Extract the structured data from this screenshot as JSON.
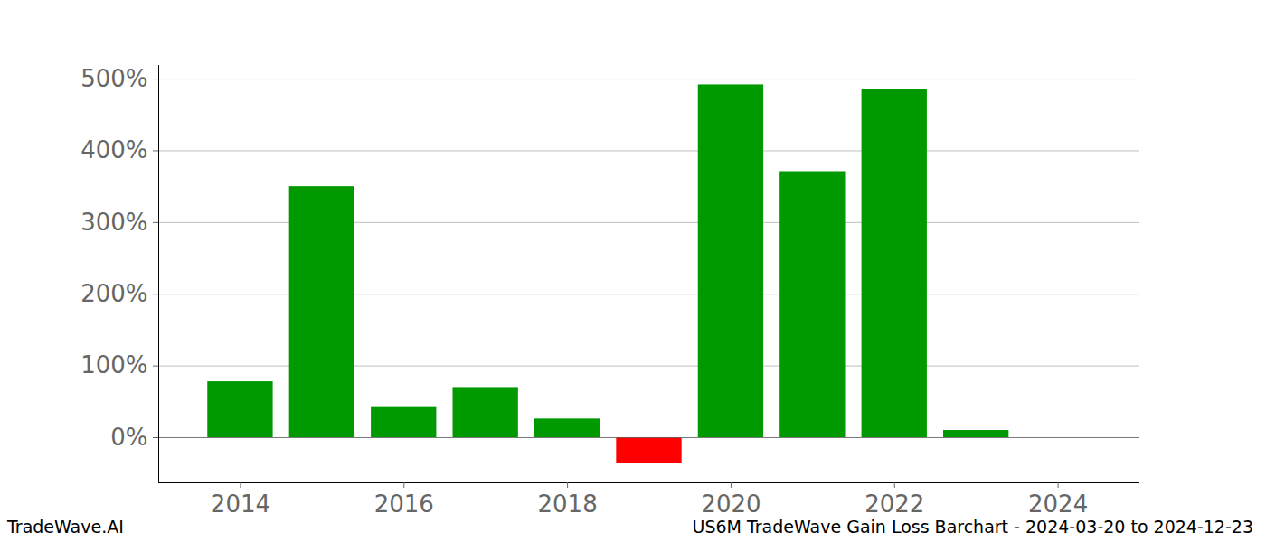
{
  "chart_data": {
    "type": "bar",
    "title": "US6M TradeWave Gain Loss Barchart - 2024-03-20 to 2024-12-23",
    "caption": "TradeWave.AI",
    "x": [
      2014,
      2015,
      2016,
      2017,
      2018,
      2019,
      2020,
      2021,
      2022,
      2023
    ],
    "values": [
      78,
      350,
      42,
      70,
      26,
      -36,
      492,
      371,
      485,
      10
    ],
    "colors": [
      "#009900",
      "#009900",
      "#009900",
      "#009900",
      "#009900",
      "#ff0000",
      "#009900",
      "#009900",
      "#009900",
      "#009900"
    ],
    "xlim": [
      2013,
      2025
    ],
    "xticks": [
      2014,
      2016,
      2018,
      2020,
      2022,
      2024
    ],
    "ylim": [
      -63,
      519
    ],
    "yticks": [
      {
        "value": 0,
        "label": "0%"
      },
      {
        "value": 100,
        "label": "100%"
      },
      {
        "value": 200,
        "label": "200%"
      },
      {
        "value": 300,
        "label": "300%"
      },
      {
        "value": 400,
        "label": "400%"
      },
      {
        "value": 500,
        "label": "500%"
      }
    ],
    "grid": true
  }
}
